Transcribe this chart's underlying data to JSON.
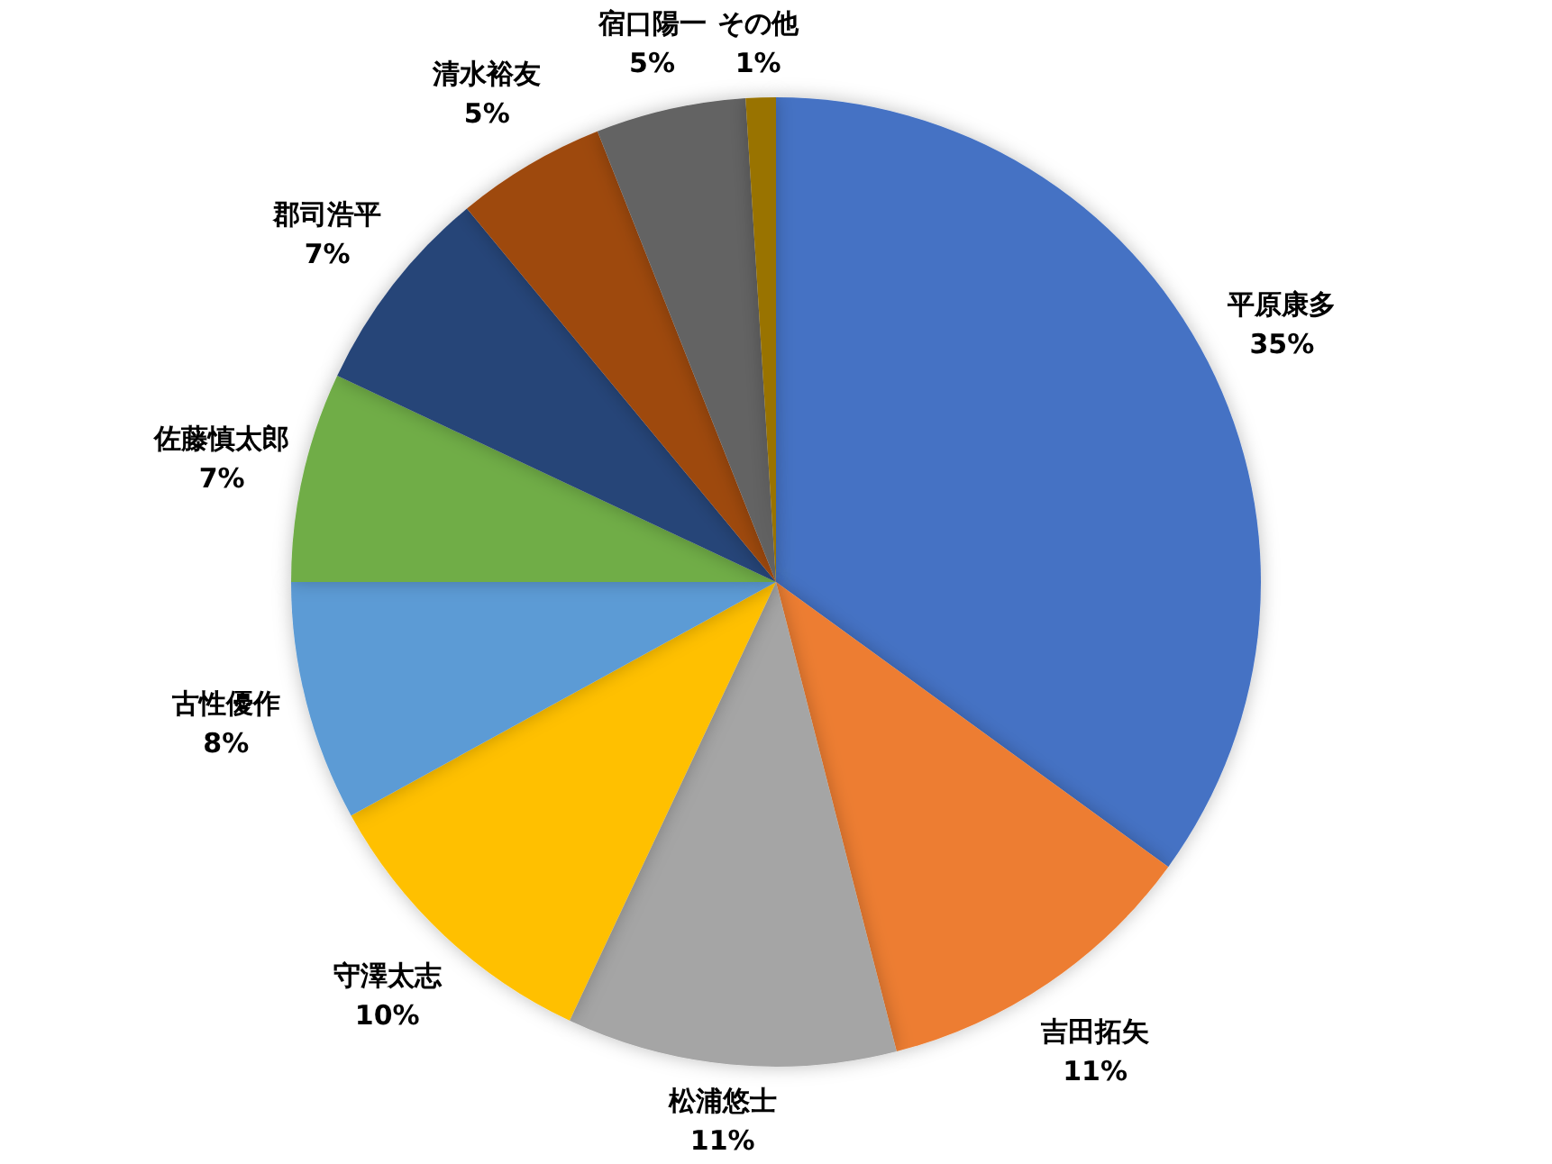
{
  "chart_data": {
    "type": "pie",
    "categories": [
      "平原康多",
      "吉田拓矢",
      "松浦悠士",
      "守澤太志",
      "古性優作",
      "佐藤慎太郎",
      "郡司浩平",
      "清水裕友",
      "宿口陽一",
      "その他"
    ],
    "values": [
      35,
      11,
      11,
      10,
      8,
      7,
      7,
      5,
      5,
      1
    ],
    "colors": [
      "#4472c4",
      "#ed7d31",
      "#a5a5a5",
      "#ffc000",
      "#5b9bd5",
      "#70ad47",
      "#264478",
      "#9e480e",
      "#636363",
      "#997300"
    ],
    "value_labels": [
      "35%",
      "11%",
      "11%",
      "10%",
      "8%",
      "7%",
      "7%",
      "5%",
      "5%",
      "1%"
    ]
  }
}
